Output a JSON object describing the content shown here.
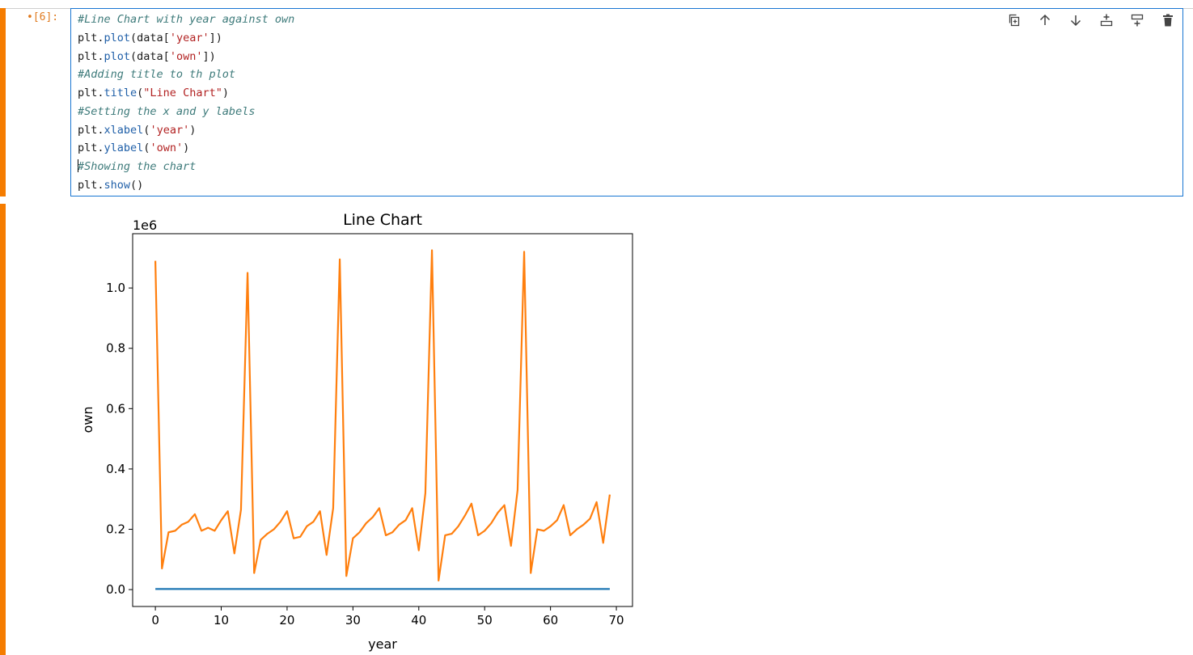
{
  "notebook": {
    "prompt": "•[6]:",
    "code_lines": [
      [
        {
          "t": "#Line Chart with year against own",
          "c": "cm"
        }
      ],
      [
        {
          "t": "plt.",
          "c": ""
        },
        {
          "t": "plot",
          "c": "fn"
        },
        {
          "t": "(data[",
          "c": ""
        },
        {
          "t": "'year'",
          "c": "st"
        },
        {
          "t": "])",
          "c": ""
        }
      ],
      [
        {
          "t": "plt.",
          "c": ""
        },
        {
          "t": "plot",
          "c": "fn"
        },
        {
          "t": "(data[",
          "c": ""
        },
        {
          "t": "'own'",
          "c": "st"
        },
        {
          "t": "])",
          "c": ""
        }
      ],
      [
        {
          "t": "#Adding title to th plot",
          "c": "cm"
        }
      ],
      [
        {
          "t": "plt.",
          "c": ""
        },
        {
          "t": "title",
          "c": "fn"
        },
        {
          "t": "(",
          "c": ""
        },
        {
          "t": "\"Line Chart\"",
          "c": "st"
        },
        {
          "t": ")",
          "c": ""
        }
      ],
      [
        {
          "t": "#Setting the x and y labels",
          "c": "cm"
        }
      ],
      [
        {
          "t": "plt.",
          "c": ""
        },
        {
          "t": "xlabel",
          "c": "fn"
        },
        {
          "t": "(",
          "c": ""
        },
        {
          "t": "'year'",
          "c": "st"
        },
        {
          "t": ")",
          "c": ""
        }
      ],
      [
        {
          "t": "plt.",
          "c": ""
        },
        {
          "t": "ylabel",
          "c": "fn"
        },
        {
          "t": "(",
          "c": ""
        },
        {
          "t": "'own'",
          "c": "st"
        },
        {
          "t": ")",
          "c": ""
        }
      ],
      [
        {
          "t": "#Showing the chart",
          "c": "cm",
          "cursor": true
        }
      ],
      [
        {
          "t": "plt.",
          "c": ""
        },
        {
          "t": "show",
          "c": "fn"
        },
        {
          "t": "()",
          "c": ""
        }
      ]
    ],
    "toolbar": [
      {
        "name": "duplicate-cell-icon"
      },
      {
        "name": "move-up-icon"
      },
      {
        "name": "move-down-icon"
      },
      {
        "name": "insert-above-icon"
      },
      {
        "name": "insert-below-icon"
      },
      {
        "name": "delete-cell-icon"
      }
    ],
    "accent_color": "#f57c00",
    "active_border_color": "#1976d2"
  },
  "chart_data": {
    "type": "line",
    "title": "Line Chart",
    "xlabel": "year",
    "ylabel": "own",
    "offset_label": "1e6",
    "xlim": [
      -3.45,
      72.45
    ],
    "ylim": [
      -0.056,
      1.18
    ],
    "xticks": [
      0,
      10,
      20,
      30,
      40,
      50,
      60,
      70
    ],
    "xtick_labels": [
      "0",
      "10",
      "20",
      "30",
      "40",
      "50",
      "60",
      "70"
    ],
    "yticks": [
      0.0,
      0.2,
      0.4,
      0.6,
      0.8,
      1.0
    ],
    "ytick_labels": [
      "0.0",
      "0.2",
      "0.4",
      "0.6",
      "0.8",
      "1.0"
    ],
    "grid": false,
    "series": [
      {
        "color": "#1f77b4",
        "x": [
          0,
          69
        ],
        "y": [
          0.002,
          0.002
        ]
      },
      {
        "color": "#ff7f0e",
        "x": [
          0,
          1,
          2,
          3,
          4,
          5,
          6,
          7,
          8,
          9,
          10,
          11,
          12,
          13,
          14,
          15,
          16,
          17,
          18,
          19,
          20,
          21,
          22,
          23,
          24,
          25,
          26,
          27,
          28,
          29,
          30,
          31,
          32,
          33,
          34,
          35,
          36,
          37,
          38,
          39,
          40,
          41,
          42,
          43,
          44,
          45,
          46,
          47,
          48,
          49,
          50,
          51,
          52,
          53,
          54,
          55,
          56,
          57,
          58,
          59,
          60,
          61,
          62,
          63,
          64,
          65,
          66,
          67,
          68,
          69
        ],
        "y": [
          1.09,
          0.07,
          0.19,
          0.195,
          0.215,
          0.225,
          0.25,
          0.195,
          0.205,
          0.195,
          0.23,
          0.26,
          0.12,
          0.265,
          1.05,
          0.055,
          0.165,
          0.185,
          0.2,
          0.225,
          0.26,
          0.17,
          0.175,
          0.21,
          0.225,
          0.26,
          0.115,
          0.27,
          1.095,
          0.045,
          0.17,
          0.19,
          0.22,
          0.24,
          0.27,
          0.18,
          0.19,
          0.215,
          0.23,
          0.27,
          0.13,
          0.32,
          1.125,
          0.03,
          0.18,
          0.185,
          0.21,
          0.245,
          0.285,
          0.18,
          0.195,
          0.22,
          0.255,
          0.28,
          0.145,
          0.33,
          1.12,
          0.055,
          0.2,
          0.195,
          0.21,
          0.23,
          0.28,
          0.18,
          0.2,
          0.215,
          0.235,
          0.29,
          0.155,
          0.315
        ]
      }
    ]
  }
}
